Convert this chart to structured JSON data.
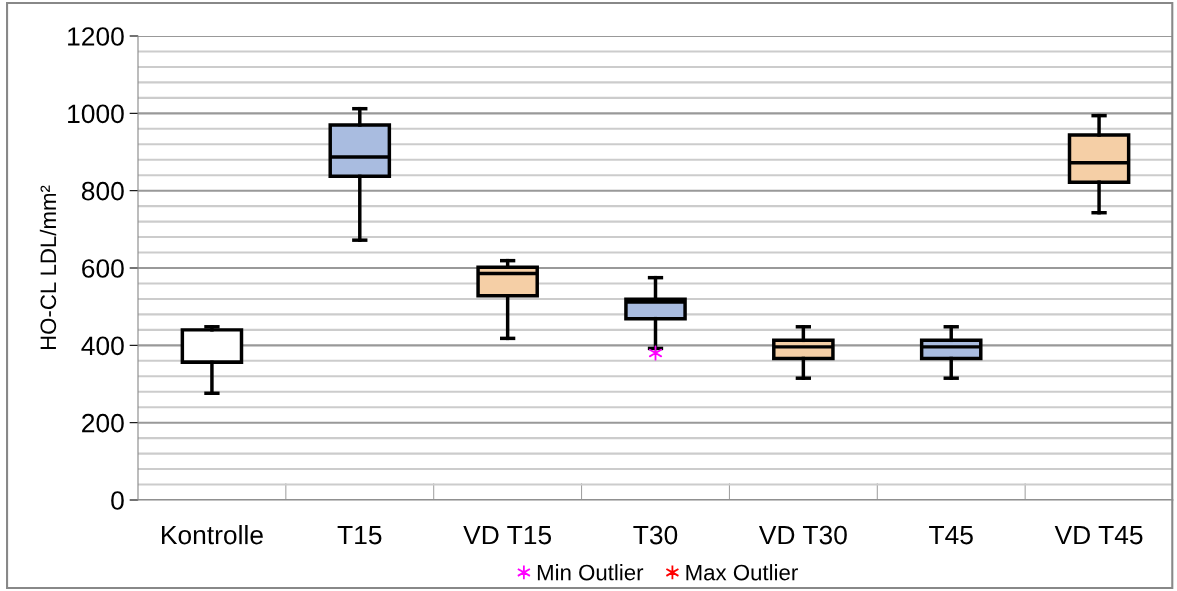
{
  "chart_data": {
    "type": "box",
    "ylabel": "HO-CL LDL/mm²",
    "categories": [
      "Kontrolle",
      "T15",
      "VD T15",
      "T30",
      "VD T30",
      "T45",
      "VD T45"
    ],
    "colors": [
      "#ffffff",
      "#a9bce0",
      "#f5cfa6",
      "#a9bce0",
      "#f5cfa6",
      "#a9bce0",
      "#f5cfa6"
    ],
    "boxes": [
      {
        "low": 276,
        "q1": 356,
        "median": 356,
        "q3": 440,
        "high": 448
      },
      {
        "low": 672,
        "q1": 837,
        "median": 887,
        "q3": 970,
        "high": 1012
      },
      {
        "low": 418,
        "q1": 528,
        "median": 586,
        "q3": 602,
        "high": 619
      },
      {
        "low": 392,
        "q1": 469,
        "median": 512,
        "q3": 519,
        "high": 575
      },
      {
        "low": 315,
        "q1": 366,
        "median": 396,
        "q3": 413,
        "high": 448
      },
      {
        "low": 315,
        "q1": 366,
        "median": 396,
        "q3": 413,
        "high": 448
      },
      {
        "low": 743,
        "q1": 822,
        "median": 872,
        "q3": 944,
        "high": 994
      }
    ],
    "series": [
      {
        "type": "scatter",
        "name": "Min Outlier",
        "color": "#ff00ff",
        "x": [
          "T30"
        ],
        "values": [
          380
        ]
      },
      {
        "type": "scatter",
        "name": "Max Outlier",
        "color": "#ff0000",
        "values": [
          null,
          null,
          null,
          null,
          null,
          null,
          null
        ]
      }
    ],
    "marker": "cross",
    "ylim": [
      0,
      1200
    ],
    "yticks": [
      0,
      200,
      400,
      600,
      800,
      1000,
      1200
    ],
    "grid": "y",
    "legend": "bottom"
  }
}
